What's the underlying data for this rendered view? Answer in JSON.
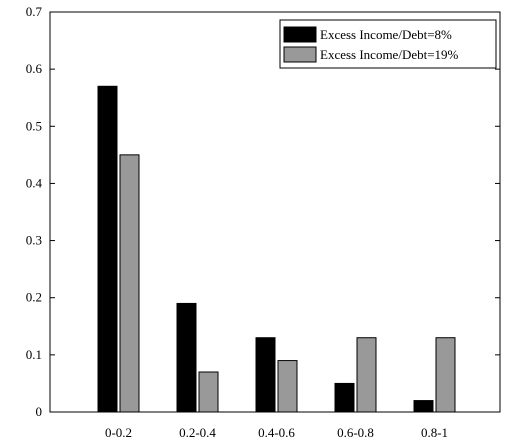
{
  "chart_data": {
    "type": "bar",
    "categories": [
      "0-0.2",
      "0.2-0.4",
      "0.4-0.6",
      "0.6-0.8",
      "0.8-1"
    ],
    "series": [
      {
        "name": "Excess Income/Debt=8%",
        "color": "#000000",
        "values": [
          0.57,
          0.19,
          0.13,
          0.05,
          0.02
        ]
      },
      {
        "name": "Excess Income/Debt=19%",
        "color": "#999999",
        "values": [
          0.45,
          0.07,
          0.09,
          0.13,
          0.13
        ]
      }
    ],
    "ylim": [
      0,
      0.7
    ],
    "yticks": [
      "0",
      "0.1",
      "0.2",
      "0.3",
      "0.4",
      "0.5",
      "0.6",
      "0.7"
    ],
    "xlabel": "",
    "ylabel": "",
    "title": "",
    "legend_position": "top-right",
    "grid": false
  }
}
